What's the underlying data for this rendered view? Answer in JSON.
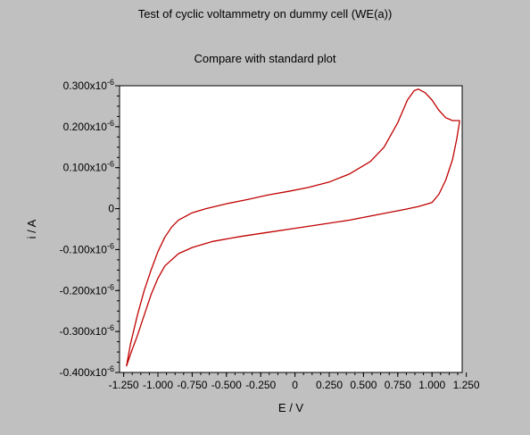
{
  "chart_data": {
    "type": "line",
    "title": "Test of cyclic voltammetry on dummy cell (WE(a))",
    "subtitle": "Compare with standard plot",
    "xlabel": "E / V",
    "ylabel": "i / A",
    "xlim": [
      -1.28,
      1.22
    ],
    "ylim": [
      -0.4,
      0.3
    ],
    "x_ticks": [
      {
        "value": -1.25,
        "label": "-1.250"
      },
      {
        "value": -1.0,
        "label": "-1.000"
      },
      {
        "value": -0.75,
        "label": "-0.750"
      },
      {
        "value": -0.5,
        "label": "-0.500"
      },
      {
        "value": -0.25,
        "label": "-0.250"
      },
      {
        "value": 0,
        "label": "0"
      },
      {
        "value": 0.25,
        "label": "0.250"
      },
      {
        "value": 0.5,
        "label": "0.500"
      },
      {
        "value": 0.75,
        "label": "0.750"
      },
      {
        "value": 1.0,
        "label": "1.000"
      },
      {
        "value": 1.25,
        "label": "1.250"
      }
    ],
    "y_ticks": [
      {
        "value": 0.3,
        "mantissa": "0.300",
        "exp": "-6"
      },
      {
        "value": 0.2,
        "mantissa": "0.200",
        "exp": "-6"
      },
      {
        "value": 0.1,
        "mantissa": "0.100",
        "exp": "-6"
      },
      {
        "value": 0,
        "mantissa": "0",
        "exp": ""
      },
      {
        "value": -0.1,
        "mantissa": "-0.100",
        "exp": "-6"
      },
      {
        "value": -0.2,
        "mantissa": "-0.200",
        "exp": "-6"
      },
      {
        "value": -0.3,
        "mantissa": "-0.300",
        "exp": "-6"
      },
      {
        "value": -0.4,
        "mantissa": "-0.400",
        "exp": "-6"
      }
    ],
    "y_units_multiplier": "x10^-6",
    "series": [
      {
        "color": "#c00000",
        "points": [
          [
            -1.23,
            -0.385
          ],
          [
            -1.2,
            -0.33
          ],
          [
            -1.15,
            -0.26
          ],
          [
            -1.1,
            -0.2
          ],
          [
            -1.05,
            -0.15
          ],
          [
            -1.0,
            -0.105
          ],
          [
            -0.95,
            -0.07
          ],
          [
            -0.9,
            -0.045
          ],
          [
            -0.85,
            -0.028
          ],
          [
            -0.75,
            -0.01
          ],
          [
            -0.65,
            0.0
          ],
          [
            -0.5,
            0.012
          ],
          [
            -0.35,
            0.022
          ],
          [
            -0.2,
            0.033
          ],
          [
            -0.05,
            0.042
          ],
          [
            0.1,
            0.052
          ],
          [
            0.25,
            0.065
          ],
          [
            0.4,
            0.085
          ],
          [
            0.55,
            0.115
          ],
          [
            0.65,
            0.15
          ],
          [
            0.75,
            0.21
          ],
          [
            0.82,
            0.265
          ],
          [
            0.87,
            0.288
          ],
          [
            0.9,
            0.292
          ],
          [
            0.95,
            0.283
          ],
          [
            1.0,
            0.265
          ],
          [
            1.05,
            0.24
          ],
          [
            1.1,
            0.222
          ],
          [
            1.15,
            0.215
          ],
          [
            1.2,
            0.215
          ],
          [
            1.2,
            0.21
          ],
          [
            1.18,
            0.17
          ],
          [
            1.15,
            0.12
          ],
          [
            1.1,
            0.07
          ],
          [
            1.05,
            0.035
          ],
          [
            1.0,
            0.015
          ],
          [
            0.9,
            0.005
          ],
          [
            0.8,
            -0.002
          ],
          [
            0.6,
            -0.015
          ],
          [
            0.4,
            -0.028
          ],
          [
            0.2,
            -0.038
          ],
          [
            0.0,
            -0.048
          ],
          [
            -0.2,
            -0.058
          ],
          [
            -0.4,
            -0.068
          ],
          [
            -0.6,
            -0.08
          ],
          [
            -0.75,
            -0.095
          ],
          [
            -0.85,
            -0.11
          ],
          [
            -0.95,
            -0.14
          ],
          [
            -1.0,
            -0.17
          ],
          [
            -1.05,
            -0.21
          ],
          [
            -1.1,
            -0.26
          ],
          [
            -1.15,
            -0.31
          ],
          [
            -1.2,
            -0.355
          ],
          [
            -1.23,
            -0.385
          ]
        ]
      }
    ]
  }
}
